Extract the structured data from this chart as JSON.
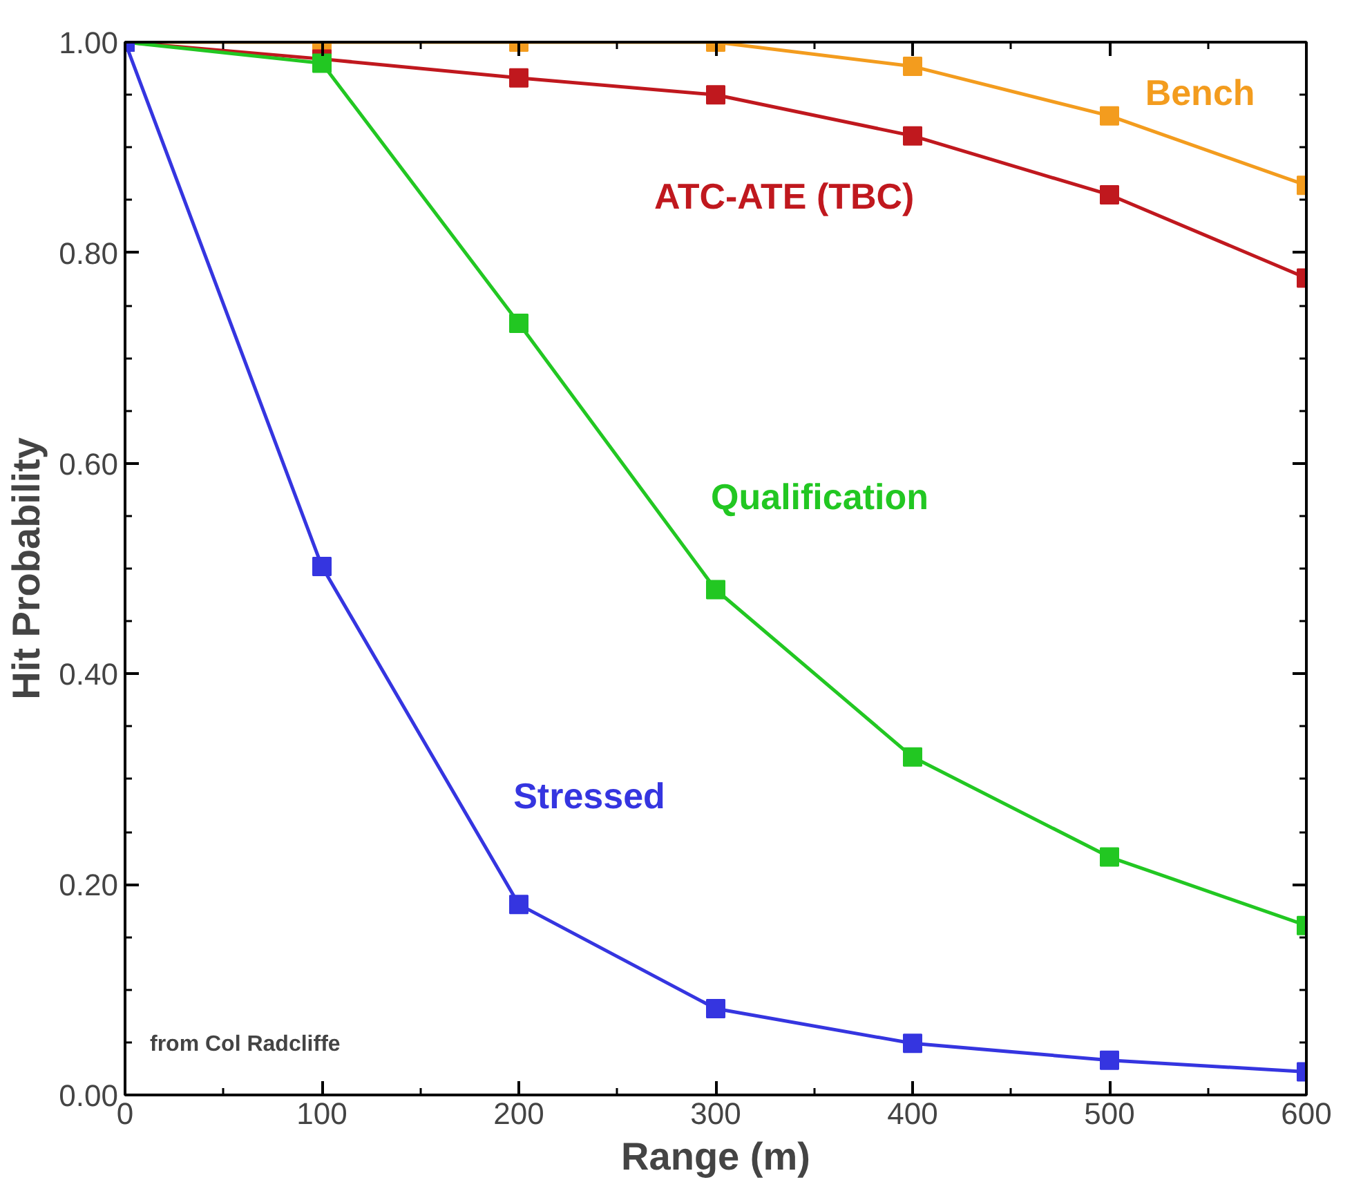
{
  "chart_data": {
    "type": "line",
    "xlabel": "Range (m)",
    "ylabel": "Hit Probability",
    "x": [
      0,
      100,
      200,
      300,
      400,
      500,
      600
    ],
    "series": [
      {
        "name": "Bench",
        "color": "#f39c1e",
        "values": [
          1.0,
          1.0,
          1.0,
          1.0,
          0.977,
          0.93,
          0.864
        ]
      },
      {
        "name": "ATC-ATE (TBC)",
        "color": "#c0181e",
        "values": [
          1.0,
          0.984,
          0.966,
          0.95,
          0.911,
          0.855,
          0.776
        ]
      },
      {
        "name": "Qualification",
        "color": "#22c722",
        "values": [
          1.0,
          0.98,
          0.733,
          0.48,
          0.321,
          0.226,
          0.161
        ]
      },
      {
        "name": "Stressed",
        "color": "#3535e0",
        "values": [
          1.0,
          0.502,
          0.181,
          0.082,
          0.049,
          0.033,
          0.022
        ]
      }
    ],
    "xlim": [
      0,
      600
    ],
    "ylim": [
      0,
      1
    ],
    "xticks": [
      0,
      100,
      200,
      300,
      400,
      500,
      600
    ],
    "yticks": [
      {
        "value": 0,
        "label": "0.00"
      },
      {
        "value": 0.2,
        "label": "0.20"
      },
      {
        "value": 0.4,
        "label": "0.40"
      },
      {
        "value": 0.6,
        "label": "0.60"
      },
      {
        "value": 0.8,
        "label": "0.80"
      },
      {
        "value": 1.0,
        "label": "1.00"
      }
    ],
    "annotations": [
      "from Col Radcliffe"
    ],
    "marker": "square",
    "grid": false
  }
}
